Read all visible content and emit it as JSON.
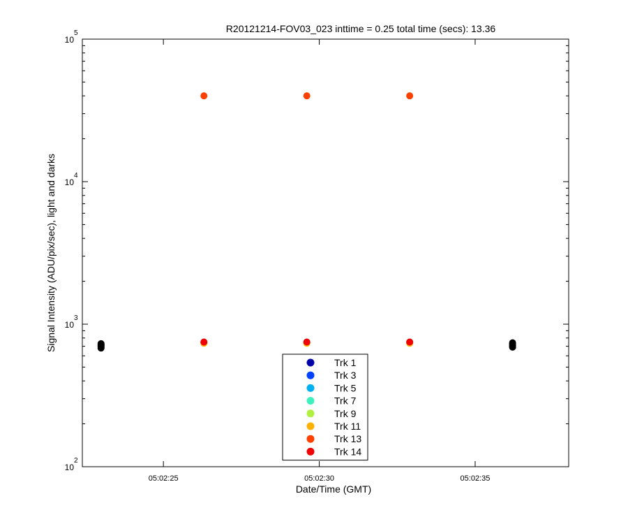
{
  "chart_data": {
    "type": "scatter",
    "title": "R20121214-FOV03_023 inttime = 0.25 total time (secs): 13.36",
    "xlabel": "Date/Time (GMT)",
    "ylabel": "Signal Intensity (ADU/pix/sec), light and darks",
    "x_unit": "seconds after 05:02:00 GMT",
    "xlim": [
      22.4,
      38.0
    ],
    "ylim": [
      100,
      100000
    ],
    "yscale": "log",
    "grid": false,
    "legend_position": "bottom-center",
    "x_ticks": [
      {
        "value": 25,
        "label": "05:02:25"
      },
      {
        "value": 30,
        "label": "05:02:30"
      },
      {
        "value": 35,
        "label": "05:02:35"
      }
    ],
    "y_ticks": [
      {
        "value": 100,
        "base": "10",
        "exp": "2"
      },
      {
        "value": 1000,
        "base": "10",
        "exp": "3"
      },
      {
        "value": 10000,
        "base": "10",
        "exp": "4"
      },
      {
        "value": 100000,
        "base": "10",
        "exp": "5"
      }
    ],
    "dark_points": {
      "color": "#000000",
      "x": [
        23.0,
        23.0,
        23.0,
        23.0,
        23.0,
        23.0,
        36.2,
        36.2,
        36.2,
        36.2,
        36.2,
        36.2
      ],
      "y": [
        680,
        690,
        700,
        710,
        720,
        730,
        690,
        700,
        710,
        720,
        730,
        740
      ]
    },
    "series": [
      {
        "name": "Trk 1",
        "color": "#0000a8",
        "x": [
          26.3,
          29.6,
          32.9
        ],
        "y": [
          745,
          745,
          745
        ]
      },
      {
        "name": "Trk 3",
        "color": "#0040ff",
        "x": [
          26.3,
          29.6,
          32.9
        ],
        "y": [
          745,
          745,
          745
        ]
      },
      {
        "name": "Trk 5",
        "color": "#00b0f0",
        "x": [
          26.3,
          29.6,
          32.9
        ],
        "y": [
          745,
          745,
          745
        ]
      },
      {
        "name": "Trk 7",
        "color": "#40f0c0",
        "x": [
          26.3,
          29.6,
          32.9
        ],
        "y": [
          745,
          745,
          745
        ]
      },
      {
        "name": "Trk 9",
        "color": "#b0f040",
        "x": [
          26.3,
          29.6,
          32.9
        ],
        "y": [
          740,
          740,
          740
        ]
      },
      {
        "name": "Trk 11",
        "color": "#ffb000",
        "x": [
          26.3,
          29.6,
          32.9
        ],
        "y": [
          735,
          735,
          735
        ]
      },
      {
        "name": "Trk 13",
        "color": "#ff4000",
        "x": [
          26.3,
          29.6,
          32.9
        ],
        "y": [
          40000,
          40000,
          40000
        ]
      },
      {
        "name": "Trk 14",
        "color": "#f00000",
        "x": [
          26.3,
          29.6,
          32.9
        ],
        "y": [
          750,
          750,
          750
        ]
      }
    ]
  }
}
